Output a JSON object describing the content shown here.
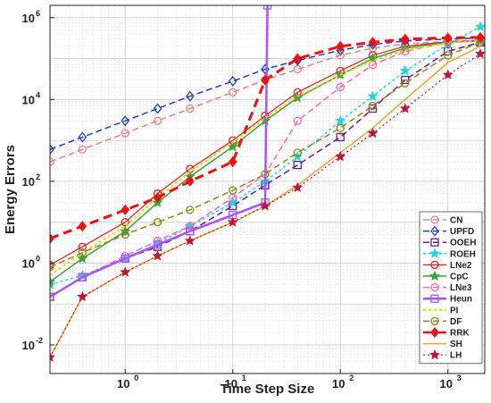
{
  "chart_data": {
    "type": "line",
    "xlabel": "Time Step Size",
    "ylabel": "Energy Errors",
    "x_scale": "log",
    "y_scale": "log",
    "xlim": [
      0.2,
      2200
    ],
    "ylim": [
      0.002,
      2000000
    ],
    "grid": true,
    "minor_grid": true,
    "legend_position": "bottom-right",
    "x_ticks": [
      1,
      10,
      100,
      1000
    ],
    "x_tick_labels": [
      "10",
      "10",
      "10",
      "10"
    ],
    "x_tick_exponents": [
      "0",
      "1",
      "2",
      "3"
    ],
    "y_ticks": [
      0.01,
      1,
      100,
      10000,
      1000000
    ],
    "y_tick_labels": [
      "10",
      "10",
      "10",
      "10",
      "10"
    ],
    "y_tick_exponents": [
      "-2",
      "0",
      "2",
      "4",
      "6"
    ],
    "series": [
      {
        "name": "CN",
        "color": "#f08080",
        "dash": "7,4",
        "width": 1.5,
        "marker": "circle",
        "x": [
          0.2,
          0.4,
          1,
          2,
          4,
          10,
          20,
          40,
          100,
          200,
          400,
          1000,
          2000
        ],
        "y": [
          300,
          600,
          1500,
          3000,
          6000,
          15000,
          30000,
          55000,
          120000,
          180000,
          230000,
          260000,
          280000
        ]
      },
      {
        "name": "UPFD",
        "color": "#1f3fbf",
        "dash": "7,4",
        "width": 1.5,
        "marker": "diamond",
        "x": [
          0.2,
          0.4,
          1,
          2,
          4,
          10,
          20,
          40,
          100,
          200,
          400,
          1000,
          2000
        ],
        "y": [
          600,
          1200,
          3000,
          6000,
          12000,
          28000,
          55000,
          90000,
          160000,
          220000,
          270000,
          300000,
          320000
        ]
      },
      {
        "name": "OOEH",
        "color": "#6a1b8a",
        "dash": "7,4",
        "width": 1.5,
        "marker": "square",
        "x": [
          0.2,
          0.4,
          1,
          2,
          4,
          10,
          20,
          40,
          100,
          200,
          400,
          1000,
          2000
        ],
        "y": [
          0.15,
          0.45,
          1.3,
          2.5,
          6,
          25,
          80,
          250,
          1200,
          6000,
          30000,
          150000,
          250000
        ]
      },
      {
        "name": "ROEH",
        "color": "#22d3e6",
        "dash": "3,3",
        "width": 1.5,
        "marker": "star",
        "x": [
          0.2,
          0.4,
          1,
          2,
          4,
          10,
          20,
          40,
          100,
          200,
          400,
          1000,
          2000
        ],
        "y": [
          0.3,
          0.5,
          1.3,
          3,
          8,
          30,
          100,
          400,
          3000,
          12000,
          50000,
          220000,
          600000
        ]
      },
      {
        "name": "LNe2",
        "color": "#e11f1f",
        "dash": "",
        "width": 1.2,
        "marker": "circle",
        "x": [
          0.2,
          0.4,
          1,
          2,
          4,
          10,
          20,
          40,
          100,
          200,
          400,
          1000,
          2000
        ],
        "y": [
          0.9,
          2.5,
          10,
          50,
          200,
          1000,
          4000,
          15000,
          50000,
          120000,
          200000,
          260000,
          280000
        ]
      },
      {
        "name": "CpC",
        "color": "#3aa33a",
        "dash": "",
        "width": 1.5,
        "marker": "star",
        "x": [
          0.2,
          0.4,
          1,
          2,
          4,
          10,
          20,
          40,
          100,
          200,
          400,
          1000,
          2000
        ],
        "y": [
          0.35,
          1.3,
          6,
          30,
          130,
          700,
          3000,
          11000,
          40000,
          100000,
          180000,
          250000,
          270000
        ]
      },
      {
        "name": "LNe3",
        "color": "#ff66b2",
        "dash": "7,4",
        "width": 1.5,
        "marker": "circle",
        "x": [
          0.2,
          0.4,
          1,
          2,
          4,
          10,
          20,
          40,
          100,
          200,
          400,
          1000,
          2000
        ],
        "y": [
          0.15,
          0.45,
          1.5,
          3.5,
          8,
          40,
          150,
          3000,
          20000,
          70000,
          150000,
          250000,
          280000
        ]
      },
      {
        "name": "Heun",
        "color": "#a855f7",
        "dash": "",
        "width": 2.5,
        "marker": "square",
        "x": [
          0.2,
          0.4,
          1,
          2,
          4,
          10,
          20,
          21
        ],
        "y": [
          0.15,
          0.45,
          1.3,
          2.8,
          6,
          15,
          30,
          2000000
        ]
      },
      {
        "name": "PI",
        "color": "#f4d400",
        "dash": "3,3",
        "width": 2,
        "marker": "none",
        "x": [
          0.2,
          0.4,
          1,
          2,
          4,
          10,
          20,
          40,
          100,
          200,
          400,
          1000,
          2000
        ],
        "y": [
          0.5,
          1.8,
          8,
          40,
          170,
          900,
          3500,
          12000,
          40000,
          90000,
          160000,
          240000,
          270000
        ]
      },
      {
        "name": "DF",
        "color": "#8a8a1a",
        "dash": "7,4",
        "width": 1.5,
        "marker": "circle",
        "x": [
          0.2,
          0.4,
          1,
          2,
          4,
          10,
          20,
          40,
          100,
          200,
          400,
          1000,
          2000
        ],
        "y": [
          0.8,
          1.8,
          5,
          10,
          20,
          60,
          150,
          500,
          2000,
          7000,
          25000,
          120000,
          250000
        ]
      },
      {
        "name": "RRK",
        "color": "#ee1111",
        "dash": "10,6",
        "width": 3,
        "marker": "diamond",
        "x": [
          0.2,
          0.4,
          1,
          2,
          4,
          10,
          20,
          40,
          100,
          200,
          400,
          1000,
          2000
        ],
        "y": [
          4,
          8,
          20,
          40,
          100,
          300,
          30000,
          100000,
          200000,
          250000,
          300000,
          320000,
          330000
        ]
      },
      {
        "name": "SH",
        "color": "#f5a030",
        "dash": "",
        "width": 1.5,
        "marker": "none",
        "x": [
          0.2,
          0.4,
          1,
          2,
          4,
          10,
          20,
          40,
          100,
          200,
          400,
          1000,
          2000
        ],
        "y": [
          0.005,
          0.15,
          0.6,
          1.5,
          3.5,
          10,
          25,
          80,
          500,
          2000,
          10000,
          80000,
          200000
        ]
      },
      {
        "name": "LH",
        "color": "#c0143c",
        "dash": "2,3",
        "width": 1.2,
        "marker": "star",
        "x": [
          0.2,
          0.4,
          1,
          2,
          4,
          10,
          20,
          40,
          100,
          200,
          400,
          1000,
          2000
        ],
        "y": [
          0.005,
          0.15,
          0.6,
          1.5,
          3.5,
          10,
          25,
          70,
          400,
          1500,
          6000,
          40000,
          130000
        ]
      }
    ]
  }
}
